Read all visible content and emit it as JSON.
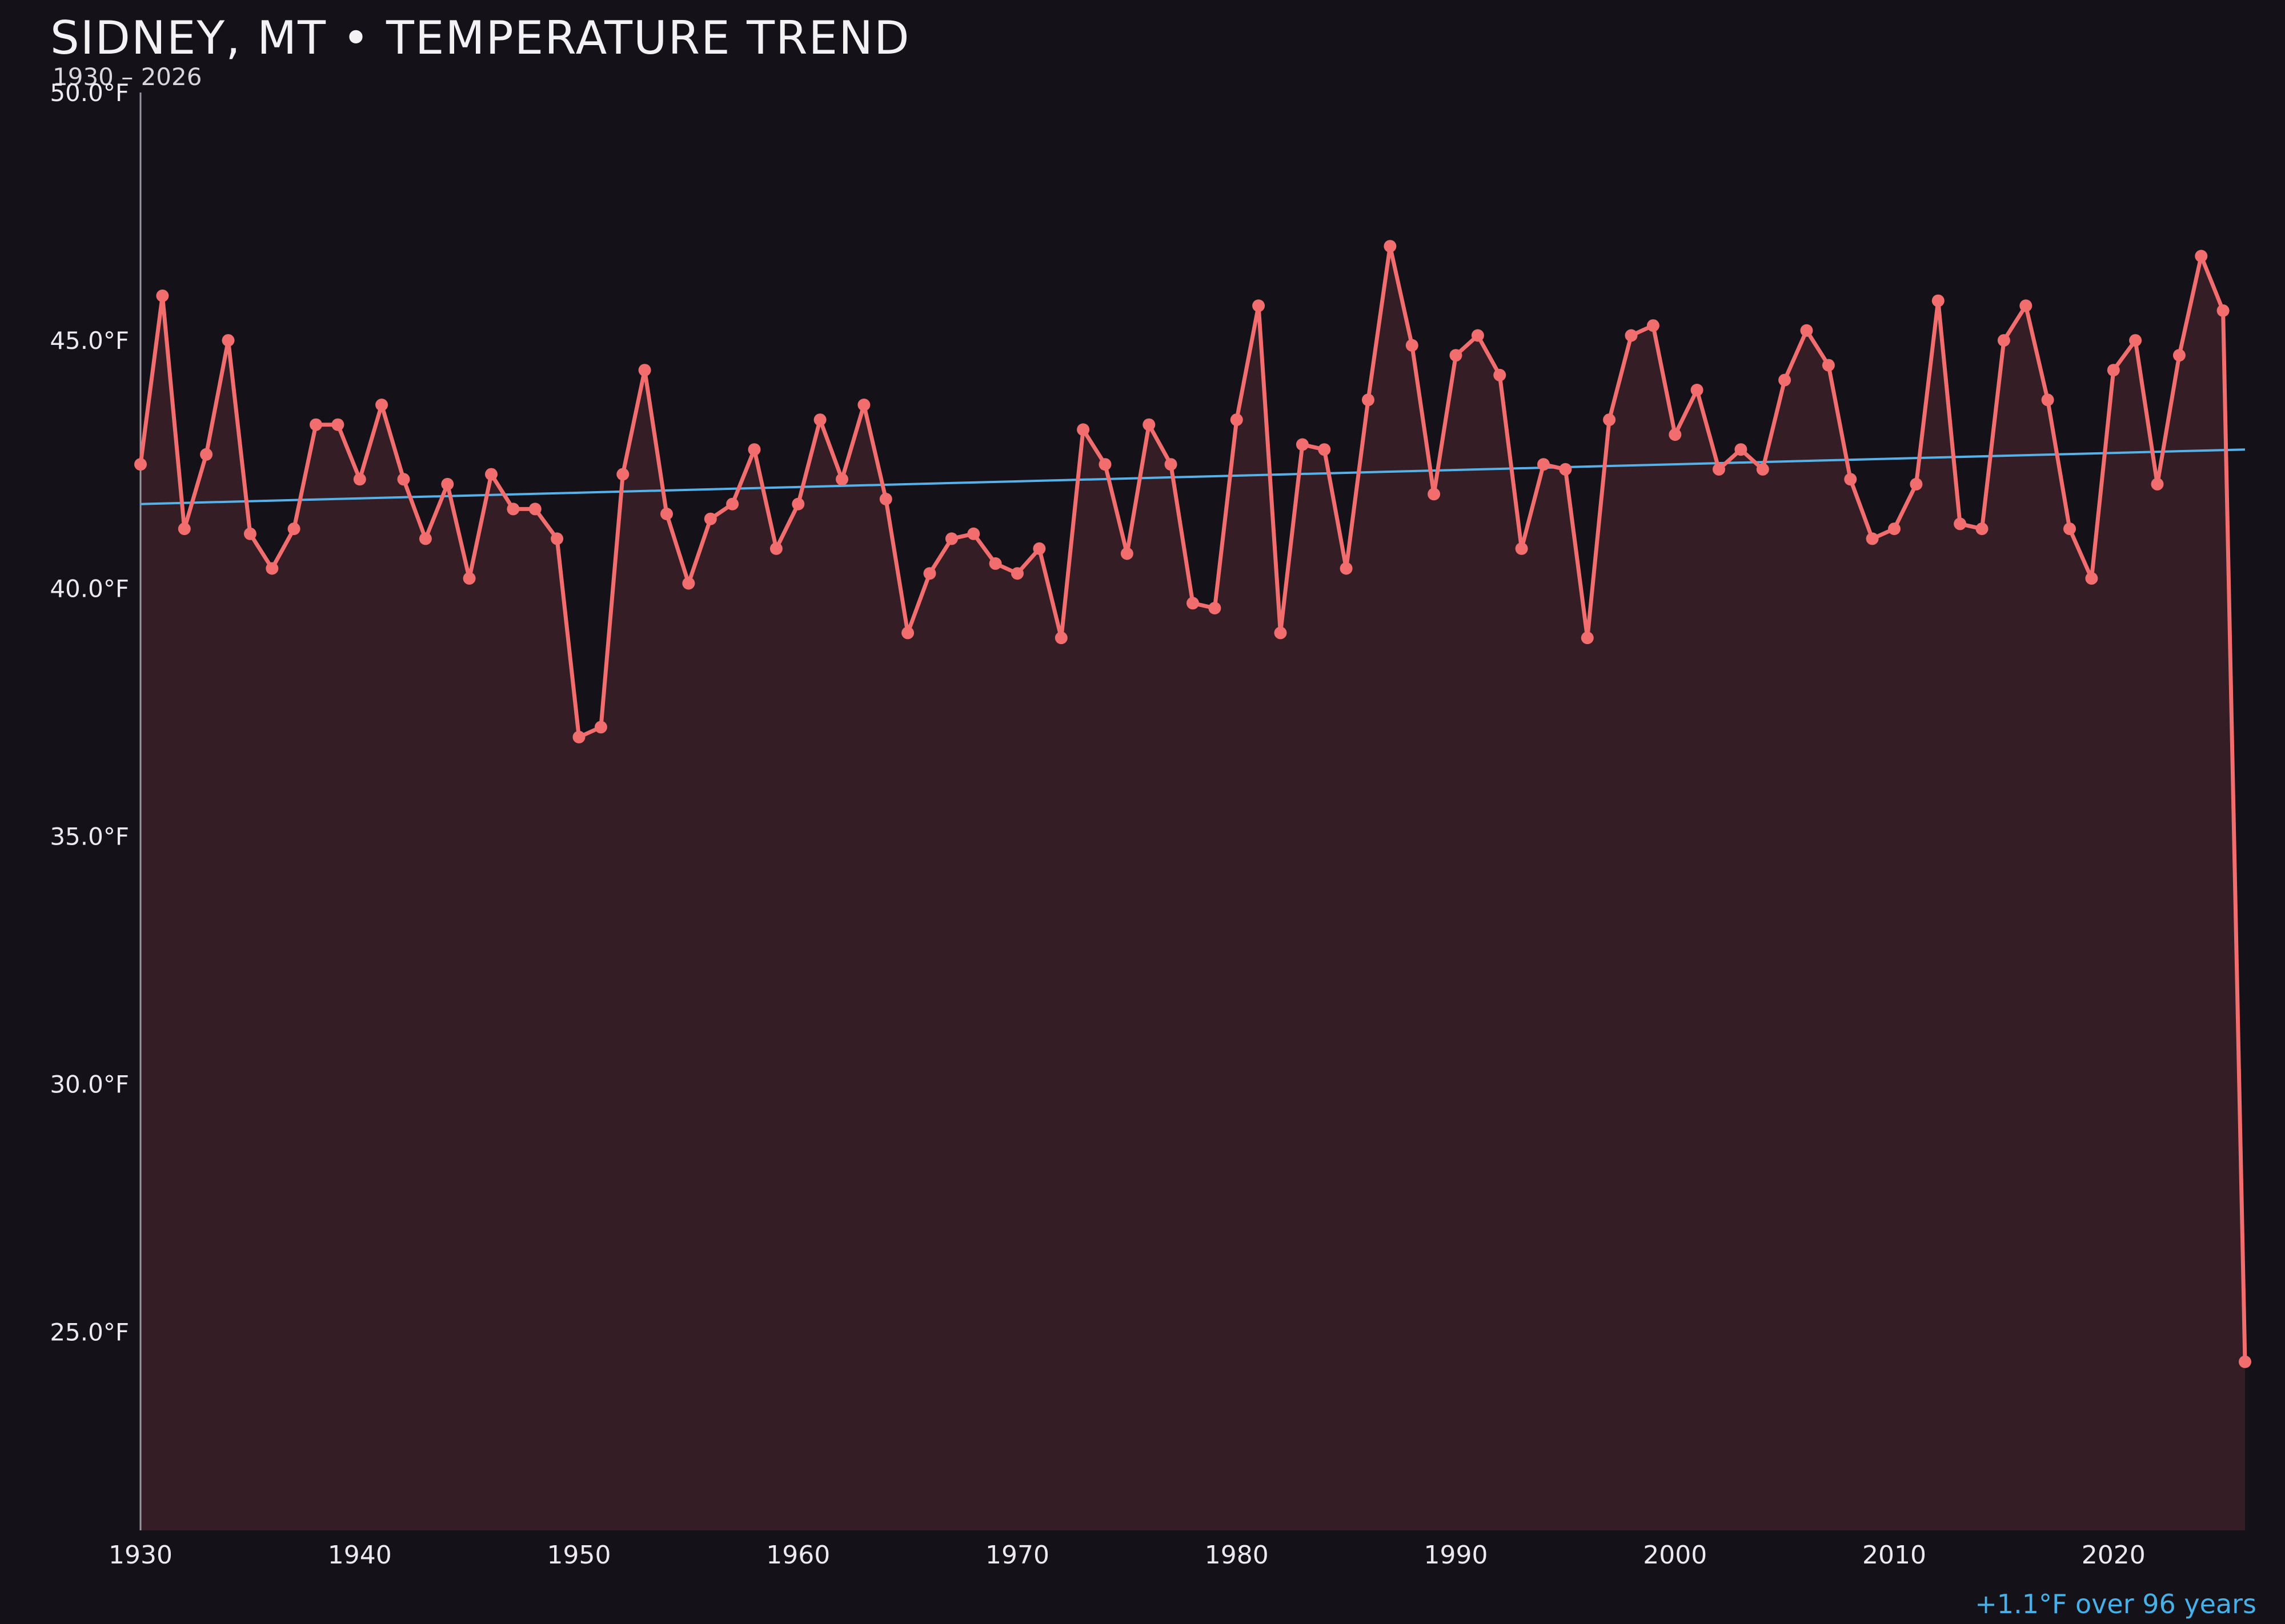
{
  "header": {
    "title": "SIDNEY, MT • TEMPERATURE TREND",
    "subtitle": "1930 – 2026"
  },
  "colors": {
    "background": "#151119",
    "series_line": "#f26d6d",
    "series_fill": "rgba(242,109,109,0.14)",
    "trend_line": "#55b1e8",
    "annotation_text": "#45b1e8",
    "axis_text": "#eceaf0",
    "axis_line": "#9a96a0",
    "title_text": "#f2f1f4",
    "subtitle_text": "#d9d6dd"
  },
  "chart_data": {
    "type": "line",
    "title": "SIDNEY, MT • TEMPERATURE TREND",
    "subtitle": "1930 – 2026",
    "xlabel": "",
    "ylabel": "°F",
    "x_range": [
      1930,
      2026
    ],
    "ylim": [
      21,
      50
    ],
    "grid": false,
    "legend": "none",
    "yticks": {
      "values": [
        50,
        45,
        40,
        35,
        30,
        25
      ],
      "labels": [
        "50.0°F",
        "45.0°F",
        "40.0°F",
        "35.0°F",
        "30.0°F",
        "25.0°F"
      ]
    },
    "xticks": {
      "values": [
        1930,
        1940,
        1950,
        1960,
        1970,
        1980,
        1990,
        2000,
        2010,
        2020
      ],
      "labels": [
        "1930",
        "1940",
        "1950",
        "1960",
        "1970",
        "1980",
        "1990",
        "2000",
        "2010",
        "2020"
      ]
    },
    "years": [
      1930,
      1931,
      1932,
      1933,
      1934,
      1935,
      1936,
      1937,
      1938,
      1939,
      1940,
      1941,
      1942,
      1943,
      1944,
      1945,
      1946,
      1947,
      1948,
      1949,
      1950,
      1951,
      1952,
      1953,
      1954,
      1955,
      1956,
      1957,
      1958,
      1959,
      1960,
      1961,
      1962,
      1963,
      1964,
      1965,
      1966,
      1967,
      1968,
      1969,
      1970,
      1971,
      1972,
      1973,
      1974,
      1975,
      1976,
      1977,
      1978,
      1979,
      1980,
      1981,
      1982,
      1983,
      1984,
      1985,
      1986,
      1987,
      1988,
      1989,
      1990,
      1991,
      1992,
      1993,
      1994,
      1995,
      1996,
      1997,
      1998,
      1999,
      2000,
      2001,
      2002,
      2003,
      2004,
      2005,
      2006,
      2007,
      2008,
      2009,
      2010,
      2011,
      2012,
      2013,
      2014,
      2015,
      2016,
      2017,
      2018,
      2019,
      2020,
      2021,
      2022,
      2023,
      2024,
      2025,
      2026
    ],
    "series": [
      {
        "name": "annual_mean_temperature_f",
        "values": [
          42.5,
          45.9,
          41.2,
          42.7,
          45.0,
          41.1,
          40.4,
          41.2,
          43.3,
          43.3,
          42.2,
          43.7,
          42.2,
          41.0,
          42.1,
          40.2,
          42.3,
          41.6,
          41.6,
          41.0,
          37.0,
          37.2,
          42.3,
          44.4,
          41.5,
          40.1,
          41.4,
          41.7,
          42.8,
          40.8,
          41.7,
          43.4,
          42.2,
          43.7,
          41.8,
          39.1,
          40.3,
          41.0,
          41.1,
          40.5,
          40.3,
          40.8,
          39.0,
          43.2,
          42.5,
          40.7,
          43.3,
          42.5,
          39.7,
          39.6,
          43.4,
          45.7,
          39.1,
          42.9,
          42.8,
          40.4,
          43.8,
          46.9,
          44.9,
          41.9,
          44.7,
          45.1,
          44.3,
          40.8,
          42.5,
          42.4,
          39.0,
          43.4,
          45.1,
          45.3,
          43.1,
          44.0,
          42.4,
          42.8,
          42.4,
          44.2,
          45.2,
          44.5,
          42.2,
          41.0,
          41.2,
          42.1,
          45.8,
          41.3,
          41.2,
          45.0,
          45.7,
          43.8,
          41.2,
          40.2,
          44.4,
          45.0,
          42.1,
          44.7,
          46.7,
          45.6,
          24.4
        ]
      }
    ],
    "trend": {
      "start_value": 41.7,
      "end_value": 42.8,
      "delta_label": "+1.1°F over 96 years"
    }
  }
}
